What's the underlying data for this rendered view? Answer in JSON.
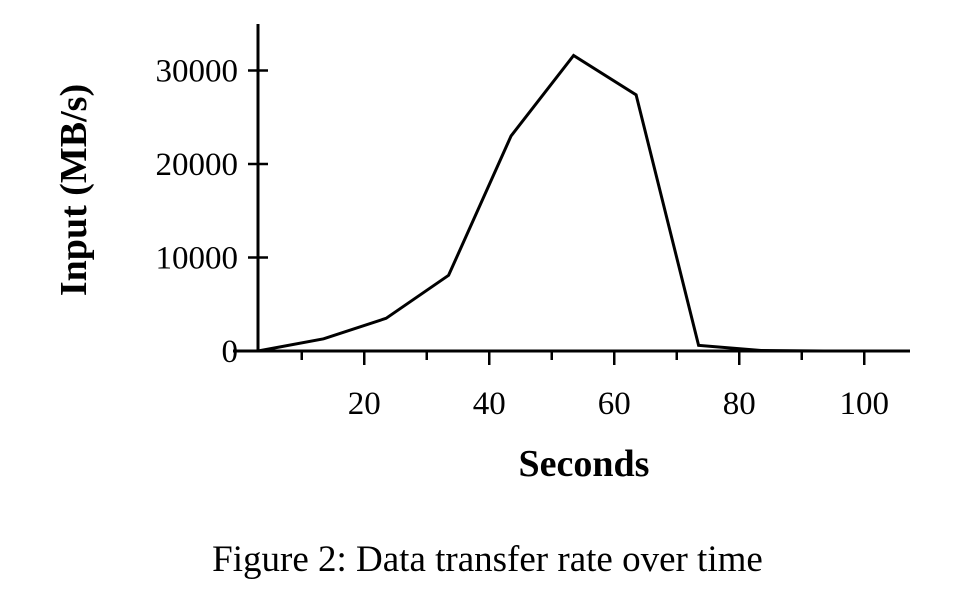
{
  "chart_data": {
    "type": "line",
    "xlabel": "Seconds",
    "ylabel": "Input (MB/s)",
    "xlim": [
      3,
      108
    ],
    "ylim": [
      0,
      35000
    ],
    "x_ticks_labeled": [
      20,
      40,
      60,
      80,
      100
    ],
    "x_ticks_minor": [
      10,
      30,
      50,
      70,
      90
    ],
    "y_ticks": [
      0,
      10000,
      20000,
      30000
    ],
    "grid": false,
    "series": [
      {
        "x": [
          3,
          13.5,
          23.5,
          33.5,
          43.5,
          53.5,
          63.5,
          73.5,
          83.5,
          93.5,
          103.5
        ],
        "y": [
          0,
          1300,
          3500,
          8100,
          23000,
          31600,
          27400,
          600,
          50,
          0,
          0
        ]
      }
    ]
  },
  "caption": "Figure 2: Data transfer rate over time"
}
